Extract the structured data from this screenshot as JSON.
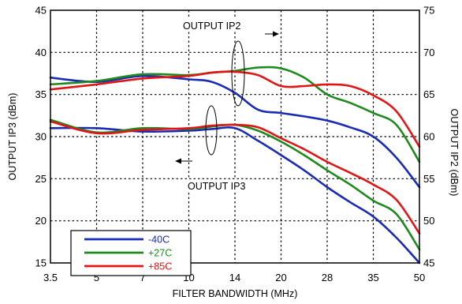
{
  "chart_data": {
    "type": "line",
    "xlabel": "FILTER BANDWIDTH (MHz)",
    "ylabel": "OUTPUT IP3 (dBm)",
    "y2label": "OUTPUT IP2 (dBm)",
    "x_tick_labels": [
      "3.5",
      "5",
      "7",
      "10",
      "14",
      "20",
      "28",
      "35",
      "50"
    ],
    "ylim": [
      15,
      45
    ],
    "y_ticks": [
      15,
      20,
      25,
      30,
      35,
      40,
      45
    ],
    "y2lim": [
      45,
      75
    ],
    "y2_ticks": [
      45,
      50,
      55,
      60,
      65,
      70,
      75
    ],
    "grid": true,
    "legend_position": "bottom-left",
    "annotations": [
      {
        "text": "OUTPUT IP2",
        "arrow": "right",
        "points_to": "right axis"
      },
      {
        "text": "OUTPUT IP3",
        "arrow": "left",
        "points_to": "left axis"
      }
    ],
    "colors": {
      "-40C": "#1a2cb4",
      "+27C": "#1e8a1e",
      "+85C": "#e01616"
    },
    "series": [
      {
        "name": "-40C",
        "group": "OUTPUT IP2",
        "axis": "right",
        "x": [
          0,
          1,
          2,
          3,
          3.5,
          4,
          4.5,
          5,
          5.5,
          6,
          6.5,
          7,
          7.5,
          8
        ],
        "y": [
          67.0,
          66.5,
          67.2,
          66.8,
          66.5,
          65.2,
          63.2,
          62.8,
          62.4,
          61.9,
          61.1,
          60.0,
          57.5,
          54.0
        ]
      },
      {
        "name": "+27C",
        "group": "OUTPUT IP2",
        "axis": "right",
        "x": [
          0,
          1,
          2,
          3,
          3.5,
          4,
          4.5,
          5,
          5.5,
          6,
          6.5,
          7,
          7.5,
          8
        ],
        "y": [
          66.2,
          66.6,
          67.4,
          67.3,
          67.6,
          67.8,
          68.2,
          68.1,
          67.0,
          65.0,
          64.0,
          62.8,
          61.4,
          57.0
        ]
      },
      {
        "name": "+85C",
        "group": "OUTPUT IP2",
        "axis": "right",
        "x": [
          0,
          1,
          2,
          3,
          3.5,
          4,
          4.5,
          5,
          5.5,
          6,
          6.5,
          7,
          7.5,
          8
        ],
        "y": [
          65.6,
          66.2,
          66.9,
          67.2,
          67.6,
          67.7,
          67.3,
          66.0,
          66.0,
          66.2,
          66.0,
          64.9,
          63.0,
          58.8
        ]
      },
      {
        "name": "-40C",
        "group": "OUTPUT IP3",
        "axis": "left",
        "x": [
          0,
          1,
          2,
          3,
          3.5,
          4,
          4.5,
          5,
          5.5,
          6,
          6.5,
          7,
          7.5,
          8
        ],
        "y": [
          31.0,
          31.0,
          30.6,
          30.7,
          30.9,
          31.0,
          29.5,
          27.8,
          26.0,
          24.0,
          22.2,
          20.5,
          18.0,
          15.0
        ]
      },
      {
        "name": "+27C",
        "group": "OUTPUT IP3",
        "axis": "left",
        "x": [
          0,
          1,
          2,
          3,
          3.5,
          4,
          4.5,
          5,
          5.5,
          6,
          6.5,
          7,
          7.5,
          8
        ],
        "y": [
          32.0,
          30.5,
          31.0,
          30.9,
          31.2,
          31.4,
          30.7,
          29.4,
          27.8,
          26.0,
          24.3,
          22.4,
          20.8,
          16.6
        ]
      },
      {
        "name": "+85C",
        "group": "OUTPUT IP3",
        "axis": "left",
        "x": [
          0,
          1,
          2,
          3,
          3.5,
          4,
          4.5,
          5,
          5.5,
          6,
          6.5,
          7,
          7.5,
          8
        ],
        "y": [
          31.8,
          30.4,
          30.8,
          31.0,
          31.3,
          31.4,
          31.1,
          29.8,
          28.5,
          27.0,
          25.7,
          24.3,
          22.5,
          18.5
        ]
      }
    ]
  }
}
